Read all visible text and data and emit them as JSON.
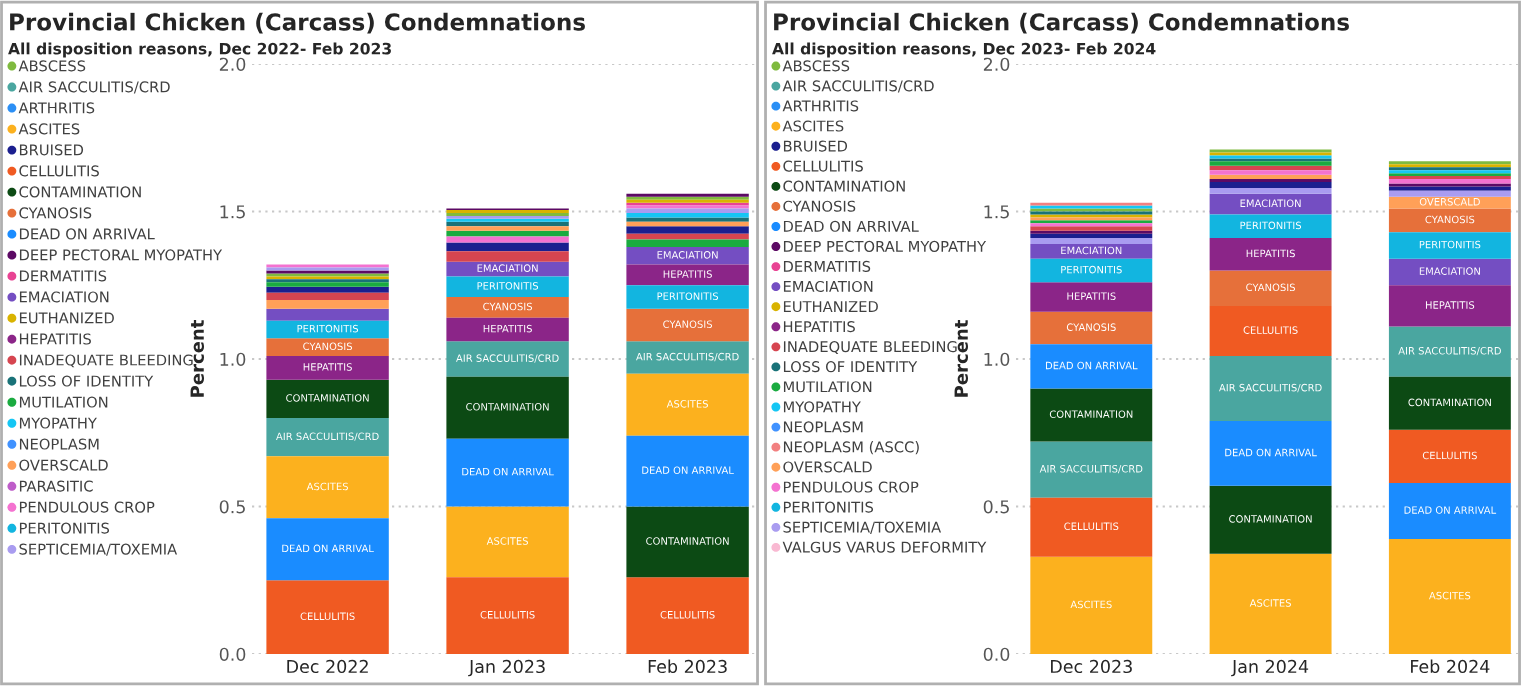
{
  "chart_data": [
    {
      "type": "bar",
      "title": "Provincial Chicken (Carcass) Condemnations",
      "subtitle": "All disposition reasons, Dec 2022- Feb 2023",
      "ylabel": "Percent",
      "categories": [
        "Dec 2022",
        "Jan 2023",
        "Feb 2023"
      ],
      "grid": "y",
      "legend": "left",
      "ylim": [
        0,
        2
      ],
      "yticks": [
        {
          "value": 0,
          "label": "0.0"
        },
        {
          "value": 0.5,
          "label": "0.5"
        },
        {
          "value": 1,
          "label": "1.0"
        },
        {
          "value": 1.5,
          "label": "1.5"
        },
        {
          "value": 2,
          "label": "2.0"
        }
      ],
      "series": [
        {
          "name": "ABSCESS",
          "color": "#7fba3f",
          "values": [
            0.01,
            0.01,
            0.01
          ],
          "base": [
            1.28,
            1.485,
            1.54
          ]
        },
        {
          "name": "AIR SACCULITIS/CRD",
          "color": "#4aa6a0",
          "values": [
            0.13,
            0.12,
            0.11
          ],
          "base": [
            0.67,
            0.94,
            0.95
          ],
          "value_labels": [
            "AIR SACCULITIS/CRD",
            "AIR SACCULITIS/CRD",
            "AIR SACCULITIS/CRD"
          ]
        },
        {
          "name": "ARTHRITIS",
          "color": "#2b8ff5",
          "values": [
            null,
            null,
            null
          ],
          "base": [
            null,
            null,
            null
          ]
        },
        {
          "name": "ASCITES",
          "color": "#fcb11e",
          "values": [
            0.21,
            0.24,
            0.21
          ],
          "base": [
            0.46,
            0.26,
            0.74
          ],
          "value_labels": [
            "ASCITES",
            "ASCITES",
            "ASCITES"
          ]
        },
        {
          "name": "BRUISED",
          "color": "#1b1f8f",
          "values": [
            0.02,
            0.03,
            0.025
          ],
          "base": [
            1.225,
            1.365,
            1.425
          ]
        },
        {
          "name": "CELLULITIS",
          "color": "#f05a22",
          "values": [
            0.25,
            0.26,
            0.26
          ],
          "base": [
            0,
            0,
            0
          ],
          "value_labels": [
            "CELLULITIS",
            "CELLULITIS",
            "CELLULITIS"
          ]
        },
        {
          "name": "CONTAMINATION",
          "color": "#0c4a14",
          "values": [
            0.13,
            0.21,
            0.24
          ],
          "base": [
            0.8,
            0.73,
            0.26
          ],
          "value_labels": [
            "CONTAMINATION",
            "CONTAMINATION",
            "CONTAMINATION"
          ]
        },
        {
          "name": "CYANOSIS",
          "color": "#e6703a",
          "values": [
            0.06,
            0.07,
            0.11
          ],
          "base": [
            1.01,
            1.14,
            1.06
          ],
          "value_labels": [
            "CYANOSIS",
            "CYANOSIS",
            "CYANOSIS"
          ]
        },
        {
          "name": "DEAD ON ARRIVAL",
          "color": "#1a8cff",
          "values": [
            0.21,
            0.23,
            0.24
          ],
          "base": [
            0.25,
            0.5,
            0.5
          ],
          "value_labels": [
            "DEAD ON ARRIVAL",
            "DEAD ON ARRIVAL",
            "DEAD ON ARRIVAL"
          ]
        },
        {
          "name": "DEEP PECTORAL MYOPATHY",
          "color": "#5c0a64",
          "values": [
            0.01,
            0.005,
            0.01
          ],
          "base": [
            1.29,
            1.505,
            1.55
          ]
        },
        {
          "name": "DERMATITIS",
          "color": "#e84393",
          "values": [
            null,
            null,
            0.01
          ],
          "base": [
            null,
            null,
            1.52
          ]
        },
        {
          "name": "EMACIATION",
          "color": "#744ec2",
          "values": [
            0.04,
            0.05,
            0.06
          ],
          "base": [
            1.13,
            1.28,
            1.32
          ],
          "value_labels": [
            null,
            "EMACIATION",
            "EMACIATION"
          ]
        },
        {
          "name": "EUTHANIZED",
          "color": "#d9b300",
          "values": [
            0.01,
            0.01,
            0.01
          ],
          "base": [
            1.27,
            1.495,
            1.53
          ]
        },
        {
          "name": "HEPATITIS",
          "color": "#8b2588",
          "values": [
            0.08,
            0.08,
            0.07
          ],
          "base": [
            0.93,
            1.06,
            1.25
          ],
          "value_labels": [
            "HEPATITIS",
            "HEPATITIS",
            "HEPATITIS"
          ]
        },
        {
          "name": "INADEQUATE BLEEDING",
          "color": "#d64550",
          "values": [
            0.025,
            0.035,
            0.02
          ],
          "base": [
            1.2,
            1.33,
            1.405
          ]
        },
        {
          "name": "LOSS OF IDENTITY",
          "color": "#197278",
          "values": [
            0.01,
            0.015,
            0.015
          ],
          "base": [
            1.26,
            1.45,
            1.465
          ]
        },
        {
          "name": "MUTILATION",
          "color": "#1aab40",
          "values": [
            0.015,
            0.02,
            0.025
          ],
          "base": [
            1.245,
            1.415,
            1.38
          ]
        },
        {
          "name": "MYOPATHY",
          "color": "#15c6f4",
          "values": [
            null,
            0.01,
            0.015
          ],
          "base": [
            null,
            1.465,
            1.48
          ]
        },
        {
          "name": "NEOPLASM",
          "color": "#4092ff",
          "values": [
            null,
            null,
            null
          ],
          "base": [
            null,
            null,
            null
          ]
        },
        {
          "name": "OVERSCALD",
          "color": "#ffa058",
          "values": [
            0.03,
            0.015,
            0.015
          ],
          "base": [
            1.17,
            1.435,
            1.45
          ]
        },
        {
          "name": "PARASITIC",
          "color": "#be5dc9",
          "values": [
            null,
            null,
            null
          ],
          "base": [
            null,
            null,
            null
          ]
        },
        {
          "name": "PENDULOUS CROP",
          "color": "#f472d0",
          "values": [
            0.01,
            0.02,
            0.01
          ],
          "base": [
            1.31,
            1.395,
            1.51
          ]
        },
        {
          "name": "PERITONITIS",
          "color": "#12b5e0",
          "values": [
            0.06,
            0.07,
            0.08
          ],
          "base": [
            1.07,
            1.21,
            1.17
          ],
          "value_labels": [
            "PERITONITIS",
            "PERITONITIS",
            "PERITONITIS"
          ]
        },
        {
          "name": "SEPTICEMIA/TOXEMIA",
          "color": "#a99cf0",
          "values": [
            0.01,
            0.01,
            0.015
          ],
          "base": [
            1.3,
            1.475,
            1.495
          ]
        }
      ]
    },
    {
      "type": "bar",
      "title": "Provincial Chicken (Carcass) Condemnations",
      "subtitle": "All disposition reasons, Dec 2023- Feb 2024",
      "ylabel": "Percent",
      "categories": [
        "Dec 2023",
        "Jan 2024",
        "Feb 2024"
      ],
      "grid": "y",
      "legend": "left",
      "ylim": [
        0,
        2
      ],
      "yticks": [
        {
          "value": 0,
          "label": "0.0"
        },
        {
          "value": 0.5,
          "label": "0.5"
        },
        {
          "value": 1,
          "label": "1.0"
        },
        {
          "value": 1.5,
          "label": "1.5"
        },
        {
          "value": 2,
          "label": "2.0"
        }
      ],
      "series": [
        {
          "name": "ABSCESS",
          "color": "#7fba3f",
          "values": [
            0.01,
            0.01,
            0.01
          ],
          "base": [
            1.5,
            1.7,
            1.66
          ]
        },
        {
          "name": "AIR SACCULITIS/CRD",
          "color": "#4aa6a0",
          "values": [
            0.19,
            0.22,
            0.17
          ],
          "base": [
            0.53,
            0.79,
            0.94
          ],
          "value_labels": [
            "AIR SACCULITIS/CRD",
            "AIR SACCULITIS/CRD",
            "AIR SACCULITIS/CRD"
          ]
        },
        {
          "name": "ARTHRITIS",
          "color": "#2b8ff5",
          "values": [
            null,
            null,
            null
          ],
          "base": [
            null,
            null,
            null
          ]
        },
        {
          "name": "ASCITES",
          "color": "#fcb11e",
          "values": [
            0.33,
            0.34,
            0.39
          ],
          "base": [
            0,
            0,
            0
          ],
          "value_labels": [
            "ASCITES",
            "ASCITES",
            "ASCITES"
          ]
        },
        {
          "name": "BRUISED",
          "color": "#1b1f8f",
          "values": [
            0.015,
            0.02,
            0.015
          ],
          "base": [
            1.41,
            1.58,
            1.57
          ]
        },
        {
          "name": "CELLULITIS",
          "color": "#f05a22",
          "values": [
            0.2,
            0.17,
            0.18
          ],
          "base": [
            0.33,
            1.01,
            0.58
          ],
          "value_labels": [
            "CELLULITIS",
            "CELLULITIS",
            "CELLULITIS"
          ]
        },
        {
          "name": "CONTAMINATION",
          "color": "#0c4a14",
          "values": [
            0.18,
            0.23,
            0.18
          ],
          "base": [
            0.72,
            0.34,
            0.76
          ],
          "value_labels": [
            "CONTAMINATION",
            "CONTAMINATION",
            "CONTAMINATION"
          ]
        },
        {
          "name": "CYANOSIS",
          "color": "#e6703a",
          "values": [
            0.11,
            0.12,
            0.08
          ],
          "base": [
            1.05,
            1.18,
            1.43
          ],
          "value_labels": [
            "CYANOSIS",
            "CYANOSIS",
            "CYANOSIS"
          ]
        },
        {
          "name": "DEAD ON ARRIVAL",
          "color": "#1a8cff",
          "values": [
            0.15,
            0.22,
            0.19
          ],
          "base": [
            0.9,
            0.57,
            0.39
          ],
          "value_labels": [
            "DEAD ON ARRIVAL",
            "DEAD ON ARRIVAL",
            "DEAD ON ARRIVAL"
          ]
        },
        {
          "name": "DEEP PECTORAL MYOPATHY",
          "color": "#5c0a64",
          "values": [
            0.01,
            0.01,
            0.01
          ],
          "base": [
            1.425,
            1.6,
            1.585
          ]
        },
        {
          "name": "DERMATITIS",
          "color": "#e84393",
          "values": [
            null,
            null,
            null
          ],
          "base": [
            null,
            null,
            null
          ]
        },
        {
          "name": "EMACIATION",
          "color": "#744ec2",
          "values": [
            0.05,
            0.07,
            0.09
          ],
          "base": [
            1.34,
            1.49,
            1.25
          ],
          "value_labels": [
            "EMACIATION",
            "EMACIATION",
            "EMACIATION"
          ]
        },
        {
          "name": "EUTHANIZED",
          "color": "#d9b300",
          "values": [
            0.01,
            0.01,
            0.01
          ],
          "base": [
            1.48,
            1.69,
            1.65
          ]
        },
        {
          "name": "HEPATITIS",
          "color": "#8b2588",
          "values": [
            0.1,
            0.11,
            0.14
          ],
          "base": [
            1.16,
            1.3,
            1.11
          ],
          "value_labels": [
            "HEPATITIS",
            "HEPATITIS",
            "HEPATITIS"
          ]
        },
        {
          "name": "INADEQUATE BLEEDING",
          "color": "#d64550",
          "values": [
            0.015,
            0.015,
            0.01
          ],
          "base": [
            1.435,
            1.64,
            1.61
          ]
        },
        {
          "name": "LOSS OF IDENTITY",
          "color": "#197278",
          "values": [
            0.01,
            0.01,
            0.01
          ],
          "base": [
            1.49,
            1.67,
            1.64
          ]
        },
        {
          "name": "MUTILATION",
          "color": "#1aab40",
          "values": [
            0.01,
            0.015,
            0.01
          ],
          "base": [
            1.46,
            1.655,
            1.62
          ]
        },
        {
          "name": "MYOPATHY",
          "color": "#15c6f4",
          "values": [
            0.01,
            0.01,
            0.01
          ],
          "base": [
            1.51,
            1.68,
            1.63
          ]
        },
        {
          "name": "NEOPLASM",
          "color": "#4092ff",
          "values": [
            null,
            null,
            null
          ],
          "base": [
            null,
            null,
            null
          ]
        },
        {
          "name": "NEOPLASM (ASCC)",
          "color": "#f28080",
          "values": [
            0.01,
            null,
            null
          ],
          "base": [
            1.52,
            null,
            null
          ]
        },
        {
          "name": "OVERSCALD",
          "color": "#ffa058",
          "values": [
            0.01,
            0.015,
            0.04
          ],
          "base": [
            1.47,
            1.61,
            1.51
          ],
          "value_labels": [
            null,
            null,
            "OVERSCALD"
          ]
        },
        {
          "name": "PENDULOUS CROP",
          "color": "#f472d0",
          "values": [
            0.01,
            0.015,
            0.015
          ],
          "base": [
            1.45,
            1.625,
            1.595
          ]
        },
        {
          "name": "PERITONITIS",
          "color": "#12b5e0",
          "values": [
            0.08,
            0.08,
            0.09
          ],
          "base": [
            1.26,
            1.41,
            1.34
          ],
          "value_labels": [
            "PERITONITIS",
            "PERITONITIS",
            "PERITONITIS"
          ]
        },
        {
          "name": "SEPTICEMIA/TOXEMIA",
          "color": "#a99cf0",
          "values": [
            0.02,
            0.02,
            0.02
          ],
          "base": [
            1.39,
            1.56,
            1.55
          ]
        },
        {
          "name": "VALGUS VARUS DEFORMITY",
          "color": "#f9b9d2",
          "values": [
            null,
            null,
            null
          ],
          "base": [
            null,
            null,
            null
          ]
        }
      ]
    }
  ]
}
